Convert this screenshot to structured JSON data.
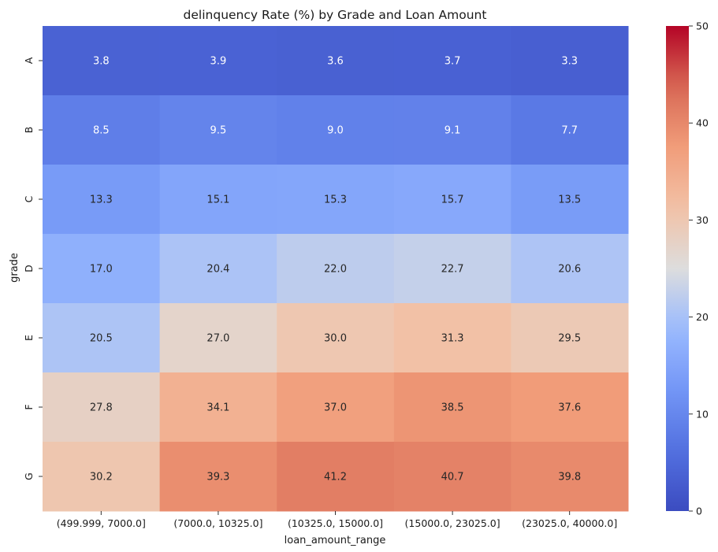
{
  "chart_data": {
    "type": "heatmap",
    "title": "delinquency  Rate (%) by Grade and Loan Amount",
    "xlabel": "loan_amount_range",
    "ylabel": "grade",
    "x_categories": [
      "(499.999, 7000.0]",
      "(7000.0, 10325.0]",
      "(10325.0, 15000.0]",
      "(15000.0, 23025.0]",
      "(23025.0, 40000.0]"
    ],
    "y_categories": [
      "A",
      "B",
      "C",
      "D",
      "E",
      "F",
      "G"
    ],
    "values": [
      [
        3.8,
        3.9,
        3.6,
        3.7,
        3.3
      ],
      [
        8.5,
        9.5,
        9.0,
        9.1,
        7.7
      ],
      [
        13.3,
        15.1,
        15.3,
        15.7,
        13.5
      ],
      [
        17.0,
        20.4,
        22.0,
        22.7,
        20.6
      ],
      [
        20.5,
        27.0,
        30.0,
        31.3,
        29.5
      ],
      [
        27.8,
        34.1,
        37.0,
        38.5,
        37.6
      ],
      [
        30.2,
        39.3,
        41.2,
        40.7,
        39.8
      ]
    ],
    "colormap": "coolwarm",
    "vmin": 0,
    "vmax": 50,
    "colorbar_ticks": [
      0,
      10,
      20,
      30,
      40,
      50
    ],
    "grid": false,
    "legend": "colorbar-right"
  }
}
